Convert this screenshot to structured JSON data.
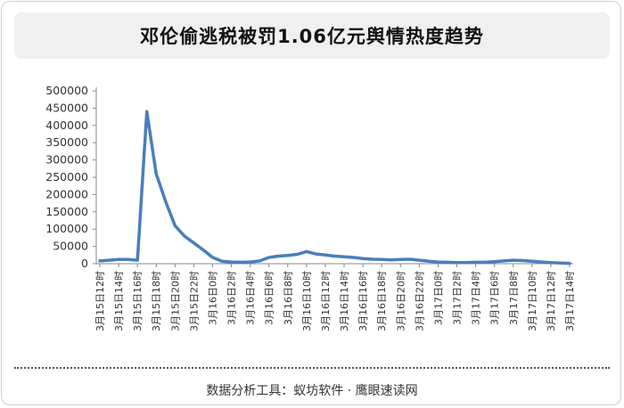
{
  "title": "邓伦偷逃税被罚1.06亿元舆情热度趋势",
  "footer": "数据分析工具：蚁坊软件 · 鹰眼速读网",
  "colors": {
    "line": "#4a7ebb",
    "grid": "#d9d9d9",
    "axis": "#888888"
  },
  "chart_data": {
    "type": "line",
    "title": "邓伦偷逃税被罚1.06亿元舆情热度趋势",
    "xlabel": "",
    "ylabel": "",
    "ylim": [
      0,
      500000
    ],
    "yticks": [
      0,
      50000,
      100000,
      150000,
      200000,
      250000,
      300000,
      350000,
      400000,
      450000,
      500000
    ],
    "grid": false,
    "legend": "none",
    "x_tick_labels": [
      "3月15日12时",
      "3月15日14时",
      "3月15日16时",
      "3月15日18时",
      "3月15日20时",
      "3月15日22时",
      "3月16日0时",
      "3月16日2时",
      "3月16日4时",
      "3月16日6时",
      "3月16日8时",
      "3月16日10时",
      "3月16日12时",
      "3月16日14时",
      "3月16日16时",
      "3月16日18时",
      "3月16日20时",
      "3月16日22时",
      "3月17日0时",
      "3月17日2时",
      "3月17日4时",
      "3月17日6时",
      "3月17日8时",
      "3月17日10时",
      "3月17日12时",
      "3月17日14时"
    ],
    "series": [
      {
        "values": [
          8000,
          10000,
          12000,
          12000,
          10000,
          440000,
          260000,
          180000,
          110000,
          80000,
          60000,
          40000,
          18000,
          7000,
          5000,
          4000,
          5000,
          8000,
          18000,
          22000,
          24000,
          27000,
          35000,
          28000,
          25000,
          22000,
          20000,
          18000,
          15000,
          13000,
          12000,
          11000,
          12000,
          13000,
          10000,
          7000,
          5000,
          4000,
          3000,
          3000,
          4000,
          4000,
          6000,
          8000,
          10000,
          9000,
          7000,
          5000,
          3000,
          2000,
          1000
        ]
      }
    ]
  }
}
